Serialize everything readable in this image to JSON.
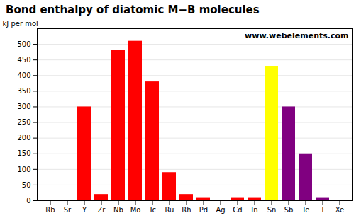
{
  "chart_data": {
    "type": "bar",
    "title": "Bond enthalpy of diatomic M−B molecules",
    "ylabel": "kJ per mol",
    "categories": [
      "Rb",
      "Sr",
      "Y",
      "Zr",
      "Nb",
      "Mo",
      "Tc",
      "Ru",
      "Rh",
      "Pd",
      "Ag",
      "Cd",
      "In",
      "Sn",
      "Sb",
      "Te",
      "I",
      "Xe"
    ],
    "values": [
      0,
      0,
      300,
      20,
      480,
      510,
      380,
      90,
      20,
      10,
      0,
      10,
      10,
      430,
      300,
      150,
      10,
      0
    ],
    "colors": [
      "red",
      "red",
      "red",
      "red",
      "red",
      "red",
      "red",
      "red",
      "red",
      "red",
      "red",
      "red",
      "red",
      "yellow",
      "purple",
      "purple",
      "purple",
      "purple"
    ],
    "ylim": [
      0,
      550
    ],
    "yticks": [
      0,
      50,
      100,
      150,
      200,
      250,
      300,
      350,
      400,
      450,
      500
    ],
    "grid": true,
    "annotations": [
      "www.webelements.com"
    ]
  }
}
